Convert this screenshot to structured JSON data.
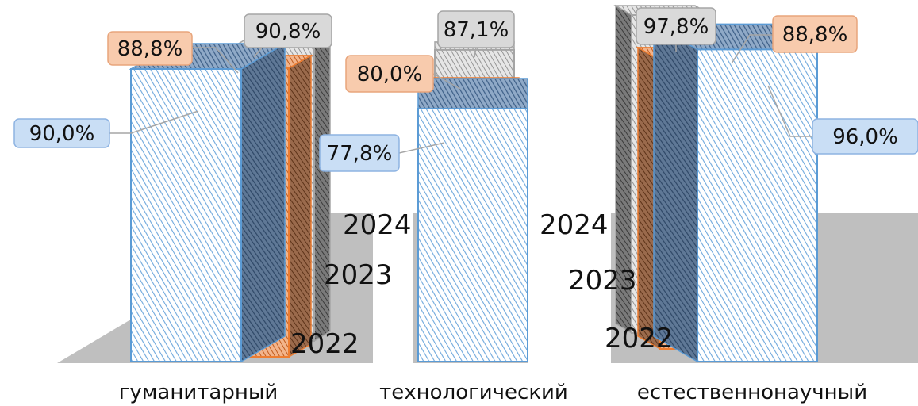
{
  "chart_data": {
    "type": "bar",
    "categories": [
      "гуманитарный",
      "технологический",
      "естественнонаучный"
    ],
    "series": [
      {
        "name": "2022",
        "values": [
          "90,0%",
          "77,8%",
          "96,0%"
        ],
        "numeric": [
          90.0,
          77.8,
          96.0
        ],
        "color": "#5b9bd5"
      },
      {
        "name": "2023",
        "values": [
          "88,8%",
          "80,0%",
          "88,8%"
        ],
        "numeric": [
          88.8,
          80.0,
          88.8
        ],
        "color": "#ed7d31"
      },
      {
        "name": "2024",
        "values": [
          "90,8%",
          "87,1%",
          "97,8%"
        ],
        "numeric": [
          90.8,
          87.1,
          97.8
        ],
        "color": "#a5a5a5"
      }
    ],
    "depth_labels": {
      "left": [
        "2024",
        "2023",
        "2022"
      ],
      "right": [
        "2024",
        "2023",
        "2022"
      ]
    },
    "label_colors": {
      "2022": {
        "fill": "#c9def5",
        "stroke": "#8db3e2"
      },
      "2023": {
        "fill": "#f8cbad",
        "stroke": "#e8a57c"
      },
      "2024": {
        "fill": "#d9d9d9",
        "stroke": "#a6a6a6"
      }
    },
    "floor_color": "#bfbfbf",
    "grid": false,
    "legend": "none",
    "view": "3d-column"
  }
}
